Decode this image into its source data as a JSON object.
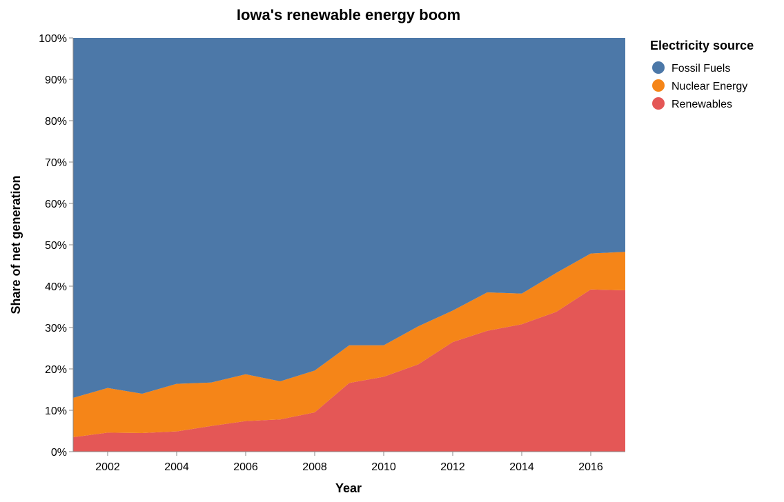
{
  "chart_data": {
    "type": "area",
    "stacked": "normalize",
    "title": "Iowa's renewable energy boom",
    "xlabel": "Year",
    "ylabel": "Share of net generation",
    "x": [
      2001,
      2002,
      2003,
      2004,
      2005,
      2006,
      2007,
      2008,
      2009,
      2010,
      2011,
      2012,
      2013,
      2014,
      2015,
      2016,
      2017
    ],
    "xlim": [
      2001,
      2017
    ],
    "ylim": [
      0,
      1
    ],
    "x_ticks": [
      2002,
      2004,
      2006,
      2008,
      2010,
      2012,
      2014,
      2016
    ],
    "x_tick_labels": [
      "2002",
      "2004",
      "2006",
      "2008",
      "2010",
      "2012",
      "2014",
      "2016"
    ],
    "y_ticks": [
      0,
      0.1,
      0.2,
      0.3,
      0.4,
      0.5,
      0.6,
      0.7,
      0.8,
      0.9,
      1.0
    ],
    "y_tick_labels": [
      "0%",
      "10%",
      "20%",
      "30%",
      "40%",
      "50%",
      "60%",
      "70%",
      "80%",
      "90%",
      "100%"
    ],
    "grid": false,
    "legend": {
      "title": "Electricity source",
      "placement": "top-right"
    },
    "series": [
      {
        "name": "Renewables",
        "color": "#e45756",
        "values": [
          0.035,
          0.046,
          0.045,
          0.049,
          0.062,
          0.074,
          0.078,
          0.095,
          0.166,
          0.181,
          0.211,
          0.265,
          0.292,
          0.308,
          0.338,
          0.392,
          0.39
        ]
      },
      {
        "name": "Nuclear Energy",
        "color": "#f58518",
        "values": [
          0.095,
          0.108,
          0.095,
          0.115,
          0.105,
          0.113,
          0.092,
          0.101,
          0.091,
          0.076,
          0.092,
          0.076,
          0.093,
          0.074,
          0.094,
          0.087,
          0.093
        ]
      },
      {
        "name": "Fossil Fuels",
        "color": "#4c78a8",
        "values": [
          0.87,
          0.846,
          0.86,
          0.836,
          0.833,
          0.813,
          0.83,
          0.804,
          0.743,
          0.743,
          0.697,
          0.659,
          0.615,
          0.618,
          0.568,
          0.521,
          0.517
        ]
      }
    ],
    "legend_order": [
      "Fossil Fuels",
      "Nuclear Energy",
      "Renewables"
    ]
  }
}
